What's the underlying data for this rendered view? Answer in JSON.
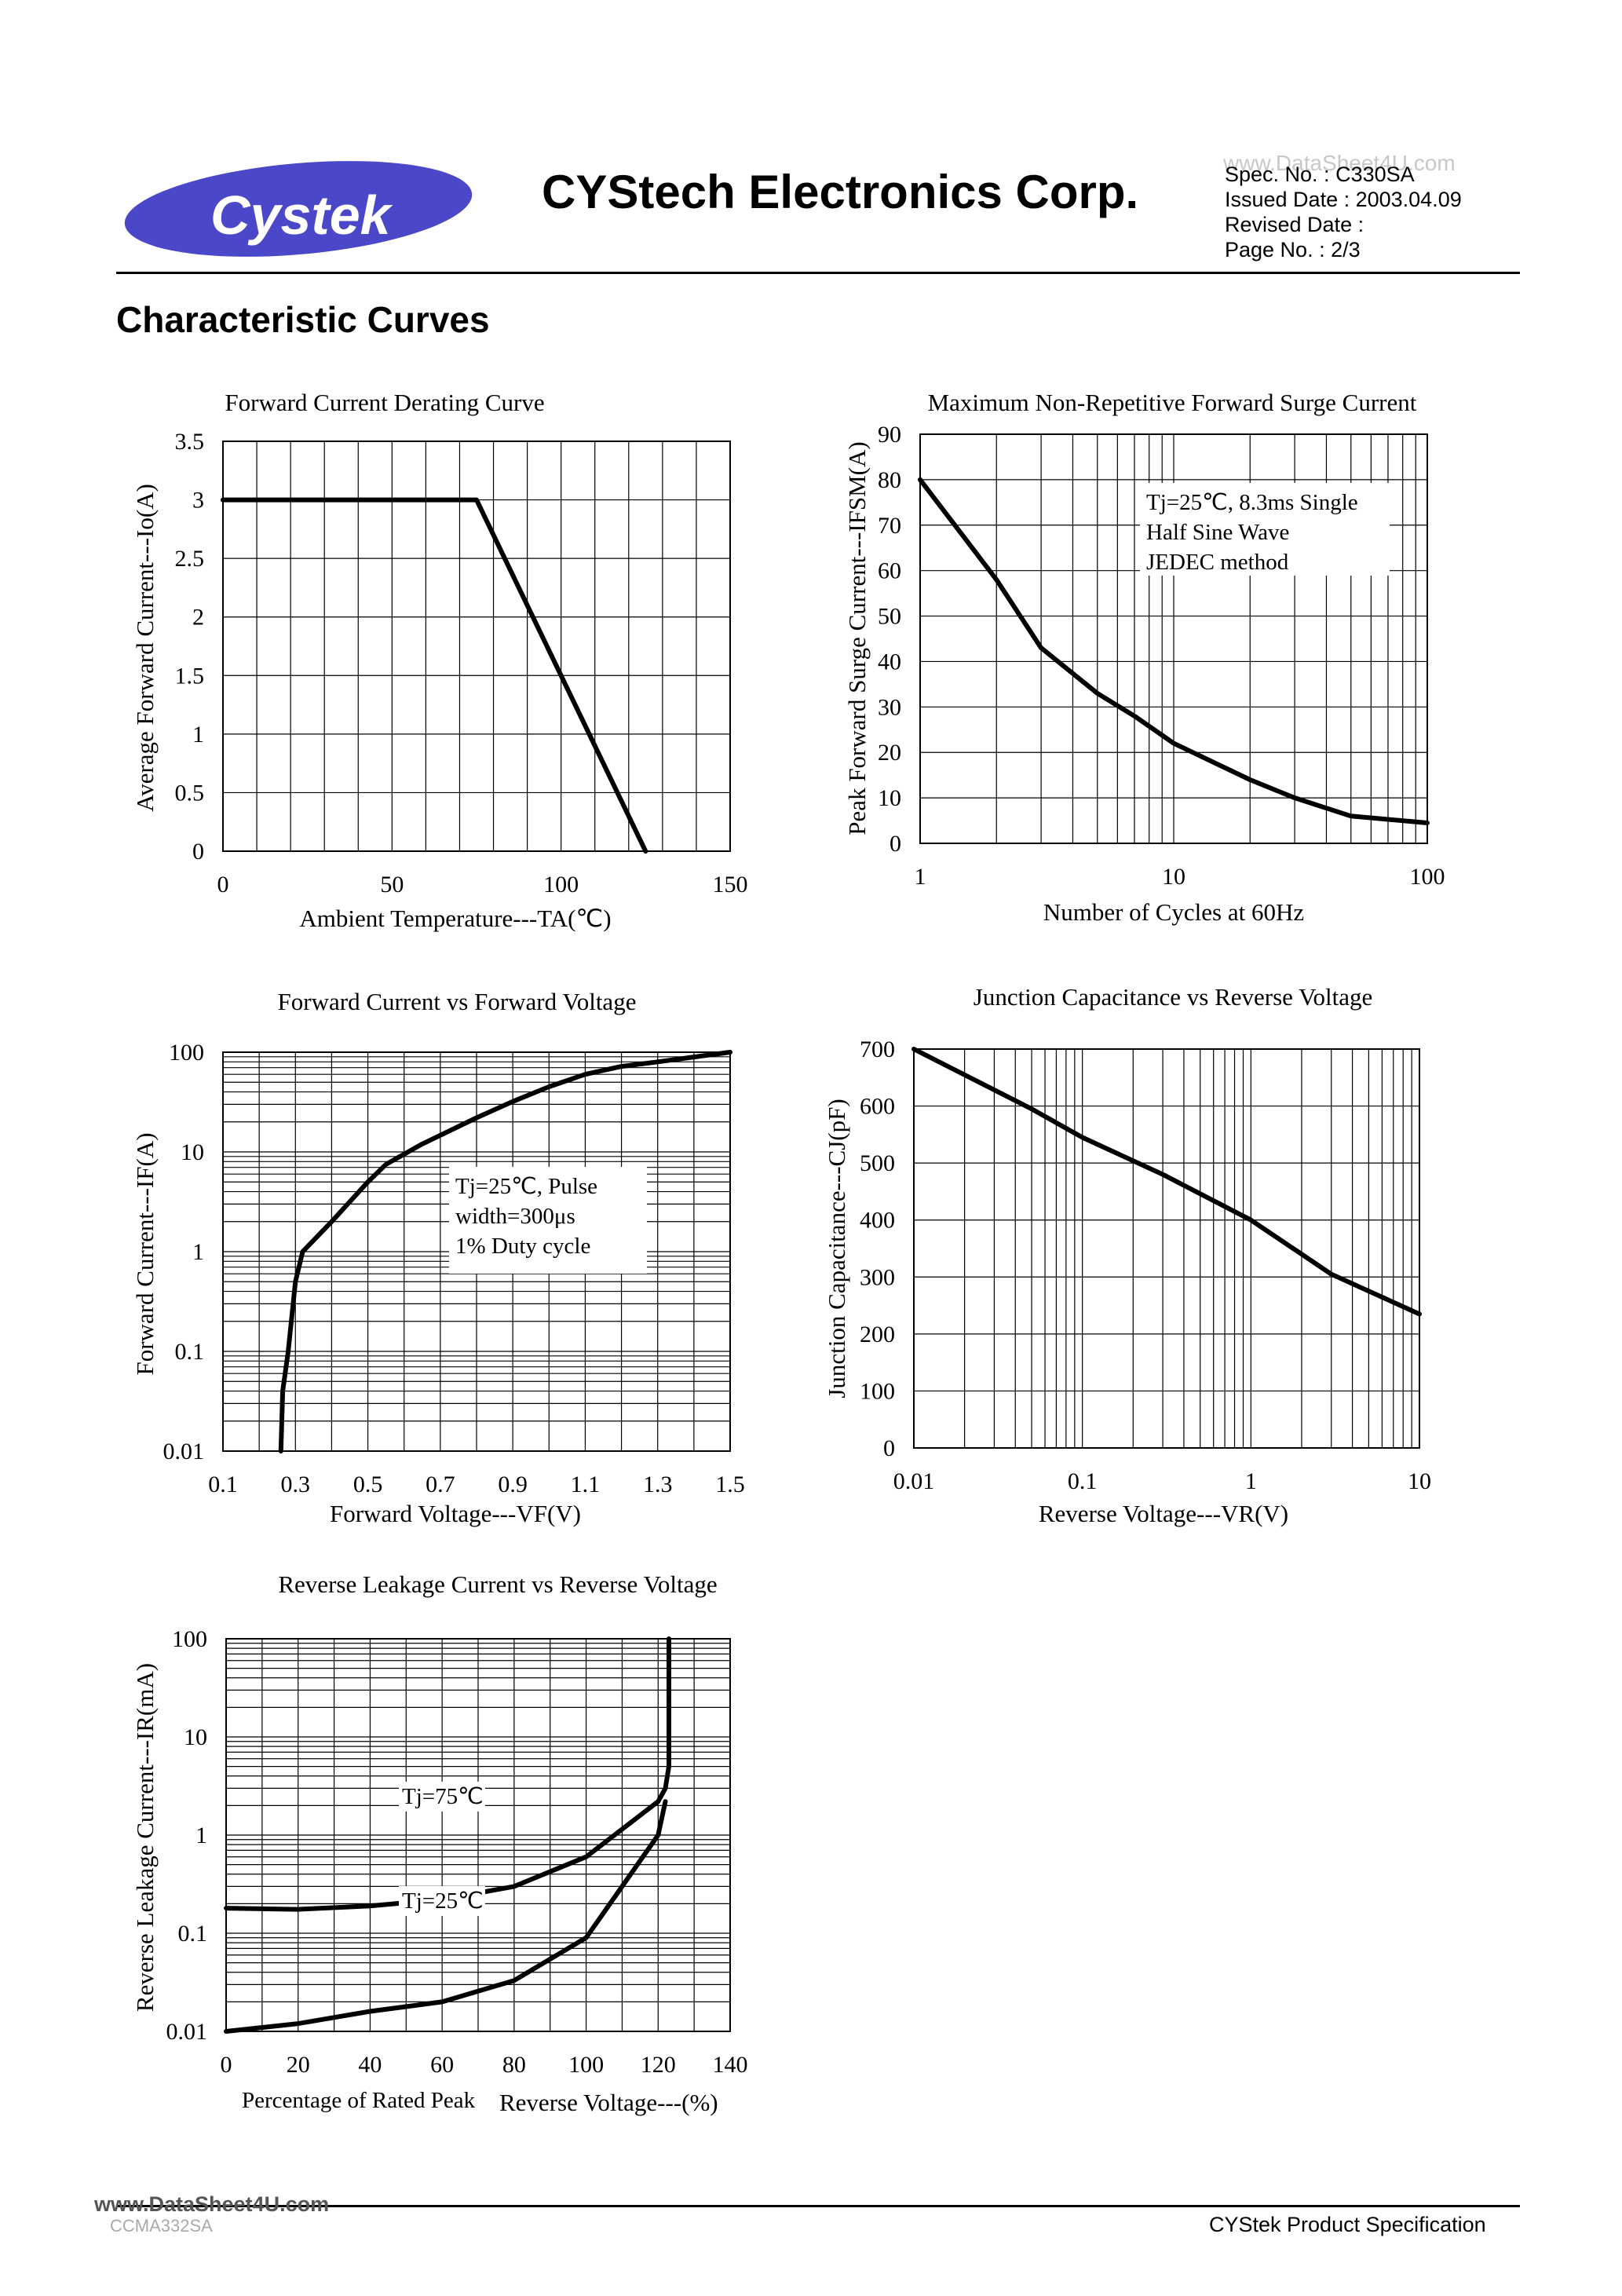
{
  "header": {
    "logo_text": "Cystek",
    "company": "CYStech Electronics Corp.",
    "watermark": "www.DataSheet4U.com",
    "spec_no": "Spec. No. : C330SA",
    "issued_date": "Issued Date : 2003.04.09",
    "revised_date": "Revised Date :",
    "page_no": "Page No. : 2/3"
  },
  "section_title": "Characteristic Curves",
  "footer": {
    "watermark": "www.DataSheet4U.com",
    "doc_code": "CCMA332SA",
    "spec_label": "CYStek Product Specification"
  },
  "colors": {
    "logo": "#4a47c9",
    "line": "#000000",
    "grid": "#000000"
  },
  "chart_data": [
    {
      "id": "derating",
      "type": "line",
      "title": "Forward Current Derating Curve",
      "xlabel": "Ambient Temperature---TA(℃)",
      "ylabel": "Average Forward Current---Io(A)",
      "xscale": "linear",
      "yscale": "linear",
      "xlim": [
        0,
        150
      ],
      "ylim": [
        0,
        3.5
      ],
      "xticks": [
        "0",
        "50",
        "100",
        "150"
      ],
      "yticks": [
        "0",
        "0.5",
        "1",
        "1.5",
        "2",
        "2.5",
        "3",
        "3.5"
      ],
      "grid": true,
      "series": [
        {
          "x": [
            0,
            75,
            125
          ],
          "y": [
            3,
            3,
            0
          ]
        }
      ]
    },
    {
      "id": "surge",
      "type": "line",
      "title": "Maximum Non-Repetitive Forward Surge Current",
      "xlabel": "Number of Cycles at 60Hz",
      "ylabel": "Peak Forward Surge Current---IFSM(A)",
      "xscale": "log",
      "yscale": "linear",
      "xlim": [
        1,
        100
      ],
      "ylim": [
        0,
        90
      ],
      "xticks": [
        "1",
        "10",
        "100"
      ],
      "yticks": [
        "0",
        "10",
        "20",
        "30",
        "40",
        "50",
        "60",
        "70",
        "80",
        "90"
      ],
      "grid": true,
      "annotation": [
        "Tj=25℃, 8.3ms Single",
        "Half Sine Wave",
        "JEDEC method"
      ],
      "series": [
        {
          "x": [
            1,
            2,
            3,
            5,
            7,
            10,
            20,
            30,
            50,
            100
          ],
          "y": [
            80,
            58,
            43,
            33,
            28,
            22,
            14,
            10,
            6,
            4.5
          ]
        }
      ]
    },
    {
      "id": "if_vf",
      "type": "line",
      "title": "Forward Current vs Forward Voltage",
      "xlabel": "Forward Voltage---VF(V)",
      "ylabel": "Forward Current---IF(A)",
      "xscale": "linear",
      "yscale": "log",
      "xlim": [
        0.1,
        1.5
      ],
      "ylim": [
        0.01,
        100
      ],
      "xticks": [
        "0.1",
        "0.3",
        "0.5",
        "0.7",
        "0.9",
        "1.1",
        "1.3",
        "1.5"
      ],
      "yticks": [
        "0.01",
        "0.1",
        "1",
        "10",
        "100"
      ],
      "grid": true,
      "annotation": [
        "Tj=25℃, Pulse",
        "width=300μs",
        "1% Duty cycle"
      ],
      "series": [
        {
          "x": [
            0.26,
            0.265,
            0.28,
            0.3,
            0.32,
            0.4,
            0.5,
            0.55,
            0.65,
            0.8,
            0.9,
            1.0,
            1.1,
            1.2,
            1.3,
            1.5
          ],
          "y": [
            0.01,
            0.04,
            0.1,
            0.5,
            1.0,
            2.0,
            5.0,
            7.5,
            12,
            22,
            32,
            45,
            60,
            72,
            80,
            100
          ]
        }
      ]
    },
    {
      "id": "cj_vr",
      "type": "line",
      "title": "Junction Capacitance vs Reverse Voltage",
      "xlabel": "Reverse Voltage---VR(V)",
      "ylabel": "Junction Capacitance---CJ(pF)",
      "xscale": "log",
      "yscale": "linear",
      "xlim": [
        0.01,
        10
      ],
      "ylim": [
        0,
        700
      ],
      "xticks": [
        "0.01",
        "0.1",
        "1",
        "10"
      ],
      "yticks": [
        "0",
        "100",
        "200",
        "300",
        "400",
        "500",
        "600",
        "700"
      ],
      "grid": true,
      "series": [
        {
          "x": [
            0.01,
            0.05,
            0.1,
            0.3,
            1,
            3,
            10
          ],
          "y": [
            700,
            595,
            545,
            480,
            400,
            305,
            235
          ]
        }
      ]
    },
    {
      "id": "ir_vr",
      "type": "line",
      "title": "Reverse  Leakage Current vs Reverse Voltage",
      "xlabel_left": "Percentage of Rated Peak",
      "xlabel_right": "Reverse Voltage---(%)",
      "ylabel": "Reverse Leakage Current---IR(mA)",
      "xscale": "linear",
      "yscale": "log",
      "xlim": [
        0,
        140
      ],
      "ylim": [
        0.01,
        100
      ],
      "xticks": [
        "0",
        "20",
        "40",
        "60",
        "80",
        "100",
        "120",
        "140"
      ],
      "yticks": [
        "0.01",
        "0.1",
        "1",
        "10",
        "100"
      ],
      "grid": true,
      "series": [
        {
          "name": "Tj=75℃",
          "x": [
            0,
            20,
            40,
            60,
            80,
            100,
            120,
            122,
            123,
            123,
            123
          ],
          "y": [
            0.18,
            0.175,
            0.19,
            0.22,
            0.3,
            0.6,
            2.2,
            3.0,
            5.0,
            30,
            100
          ]
        },
        {
          "name": "Tj=25℃",
          "x": [
            0,
            20,
            40,
            60,
            80,
            100,
            120,
            122
          ],
          "y": [
            0.01,
            0.012,
            0.016,
            0.02,
            0.033,
            0.09,
            1.0,
            2.2
          ]
        }
      ]
    }
  ]
}
